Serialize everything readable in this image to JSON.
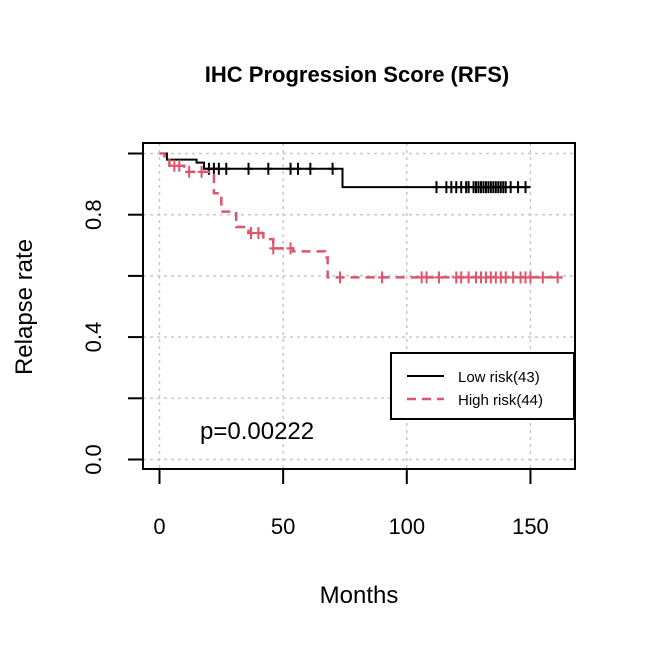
{
  "chart_data": {
    "type": "line",
    "subtype": "kaplan-meier",
    "title": "IHC Progression Score (RFS)",
    "xlabel": "Months",
    "ylabel": "Relapse rate",
    "xlim": [
      0,
      160
    ],
    "ylim": [
      0,
      1
    ],
    "x_ticks": [
      0,
      50,
      100,
      150
    ],
    "y_ticks": [
      0,
      0.2,
      0.4,
      0.6,
      0.8,
      1.0
    ],
    "y_tick_labels": [
      {
        "value": 0,
        "label": "0.0"
      },
      {
        "value": 0.4,
        "label": "0.4"
      },
      {
        "value": 0.8,
        "label": "0.8"
      }
    ],
    "grid": true,
    "legend_position": "right",
    "annotation": "p=0.00222",
    "series": [
      {
        "name": "Low risk(43)",
        "color": "#000000",
        "dash": "solid",
        "steps": [
          [
            0,
            1.0
          ],
          [
            3,
            0.98
          ],
          [
            6,
            0.98
          ],
          [
            15,
            0.97
          ],
          [
            18,
            0.95
          ],
          [
            73,
            0.95
          ],
          [
            74,
            0.89
          ],
          [
            150,
            0.89
          ]
        ],
        "censor": [
          20,
          22,
          24,
          27,
          36,
          44,
          53,
          56,
          61,
          70,
          112,
          116,
          118,
          120,
          122,
          124,
          125,
          127,
          128,
          129,
          130,
          131,
          132,
          133,
          134,
          135,
          136,
          137,
          138,
          139,
          140,
          142,
          145,
          148
        ]
      },
      {
        "name": "High risk(44)",
        "color": "#DF536B",
        "dash": "dashed",
        "steps": [
          [
            0,
            1.0
          ],
          [
            2,
            0.98
          ],
          [
            4,
            0.96
          ],
          [
            10,
            0.94
          ],
          [
            20,
            0.93
          ],
          [
            22,
            0.87
          ],
          [
            25,
            0.81
          ],
          [
            31,
            0.76
          ],
          [
            36,
            0.74
          ],
          [
            42,
            0.72
          ],
          [
            46,
            0.69
          ],
          [
            54,
            0.68
          ],
          [
            67,
            0.66
          ],
          [
            68,
            0.595
          ],
          [
            163,
            0.595
          ]
        ],
        "censor": [
          6,
          8,
          12,
          17,
          37,
          40,
          46,
          53,
          73,
          90,
          106,
          108,
          113,
          120,
          122,
          125,
          128,
          130,
          132,
          134,
          136,
          138,
          140,
          143,
          146,
          148,
          150,
          155,
          161
        ]
      }
    ]
  }
}
